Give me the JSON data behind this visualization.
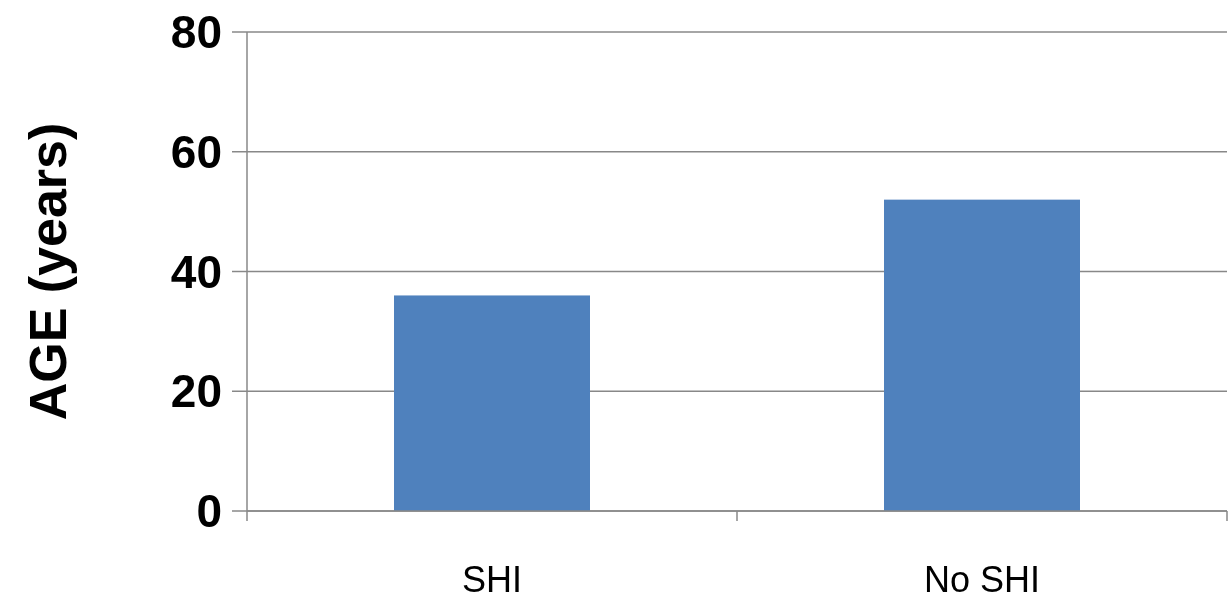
{
  "chart_data": {
    "type": "bar",
    "ylabel": "AGE (years)",
    "categories": [
      "SHI",
      "No SHI"
    ],
    "values": [
      36,
      52
    ],
    "color": "#4f81bd",
    "ylim": [
      0,
      80
    ],
    "yticks": [
      0,
      20,
      40,
      60,
      80
    ],
    "grid": "y"
  }
}
